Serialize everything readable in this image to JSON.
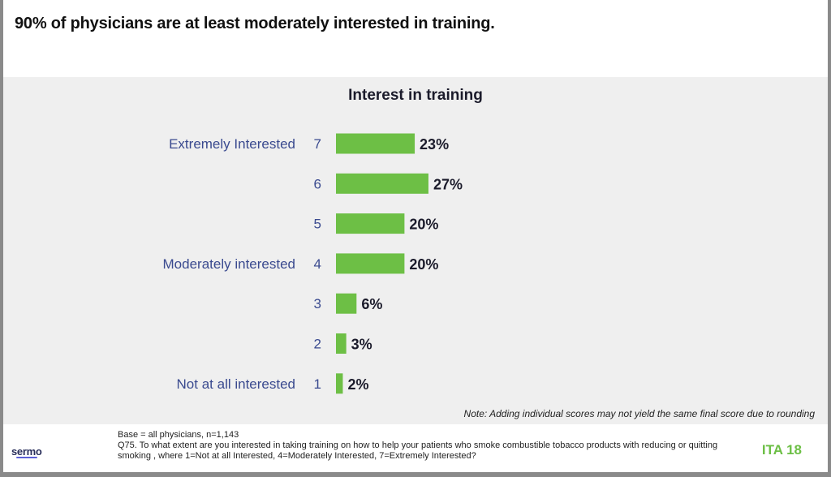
{
  "title": "90% of physicians are at least moderately interested in training.",
  "colors": {
    "bar": "#6dbf45",
    "label": "#3a4a8f",
    "value": "#1b1b2b"
  },
  "chart_data": {
    "type": "bar",
    "orientation": "horizontal",
    "title": "Interest in training",
    "categories": [
      "7",
      "6",
      "5",
      "4",
      "3",
      "2",
      "1"
    ],
    "category_descriptions": [
      "Extremely Interested",
      "",
      "",
      "Moderately interested",
      "",
      "",
      "Not at all interested"
    ],
    "values": [
      23,
      27,
      20,
      20,
      6,
      3,
      2
    ],
    "value_labels": [
      "23%",
      "27%",
      "20%",
      "20%",
      "6%",
      "3%",
      "2%"
    ],
    "unit": "%",
    "xlim": [
      0,
      100
    ],
    "grid": false,
    "legend": "none"
  },
  "note": "Note: Adding individual scores may not yield the same final score due to rounding",
  "footer": {
    "base": "Base = all physicians, n=1,143",
    "question": "Q75. To what extent are you interested in taking training on how to help your patients who smoke combustible tobacco products with reducing or quitting smoking , where 1=Not at all Interested, 4=Moderately Interested, 7=Extremely Interested?"
  },
  "logo": "sermo",
  "page_label": "ITA 18"
}
